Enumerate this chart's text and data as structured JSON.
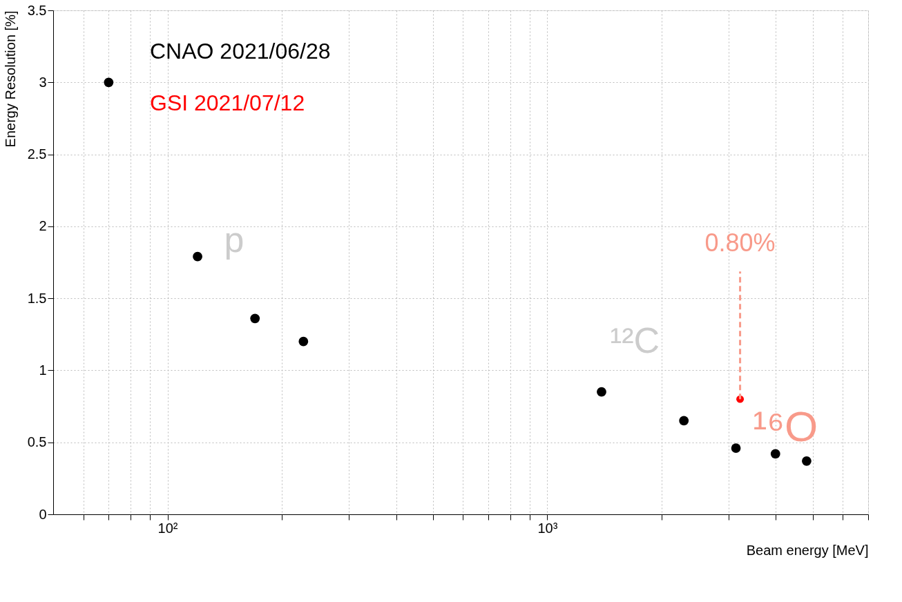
{
  "chart_data": {
    "type": "scatter",
    "xlabel": "Beam energy [MeV]",
    "ylabel": "Energy Resolution [%]",
    "series": [
      {
        "name": "CNAO 2021/06/28",
        "color": "#000000",
        "x": [
          70,
          120,
          170,
          228,
          1390,
          2290,
          3140,
          3990,
          4820
        ],
        "values": [
          3.0,
          1.79,
          1.36,
          1.2,
          0.85,
          0.65,
          0.46,
          0.42,
          0.37
        ]
      },
      {
        "name": "GSI 2021/07/12",
        "color": "#ff0000",
        "x": [
          3220
        ],
        "values": [
          0.8
        ]
      }
    ],
    "log": "x",
    "xlim": [
      50,
      7000
    ],
    "xticks": [
      {
        "value": 60,
        "label": null
      },
      {
        "value": 70,
        "label": null
      },
      {
        "value": 80,
        "label": null
      },
      {
        "value": 90,
        "label": null
      },
      {
        "value": 100,
        "label": "10²"
      },
      {
        "value": 200,
        "label": null
      },
      {
        "value": 300,
        "label": null
      },
      {
        "value": 400,
        "label": null
      },
      {
        "value": 500,
        "label": null
      },
      {
        "value": 600,
        "label": null
      },
      {
        "value": 700,
        "label": null
      },
      {
        "value": 800,
        "label": null
      },
      {
        "value": 900,
        "label": null
      },
      {
        "value": 1000,
        "label": "10³"
      },
      {
        "value": 2000,
        "label": null
      },
      {
        "value": 3000,
        "label": null
      },
      {
        "value": 4000,
        "label": null
      },
      {
        "value": 5000,
        "label": null
      },
      {
        "value": 6000,
        "label": null
      },
      {
        "value": 7000,
        "label": null
      }
    ],
    "ylim": [
      0,
      3.5
    ],
    "yticks": [
      0,
      0.5,
      1,
      1.5,
      2,
      2.5,
      3,
      3.5
    ],
    "grid": true,
    "legend": "top left",
    "marker": "circle",
    "annotations": [
      "p",
      "¹²C",
      "¹⁶O",
      {
        "text": "0.80%",
        "x": 3220,
        "y": 0.8
      }
    ]
  }
}
